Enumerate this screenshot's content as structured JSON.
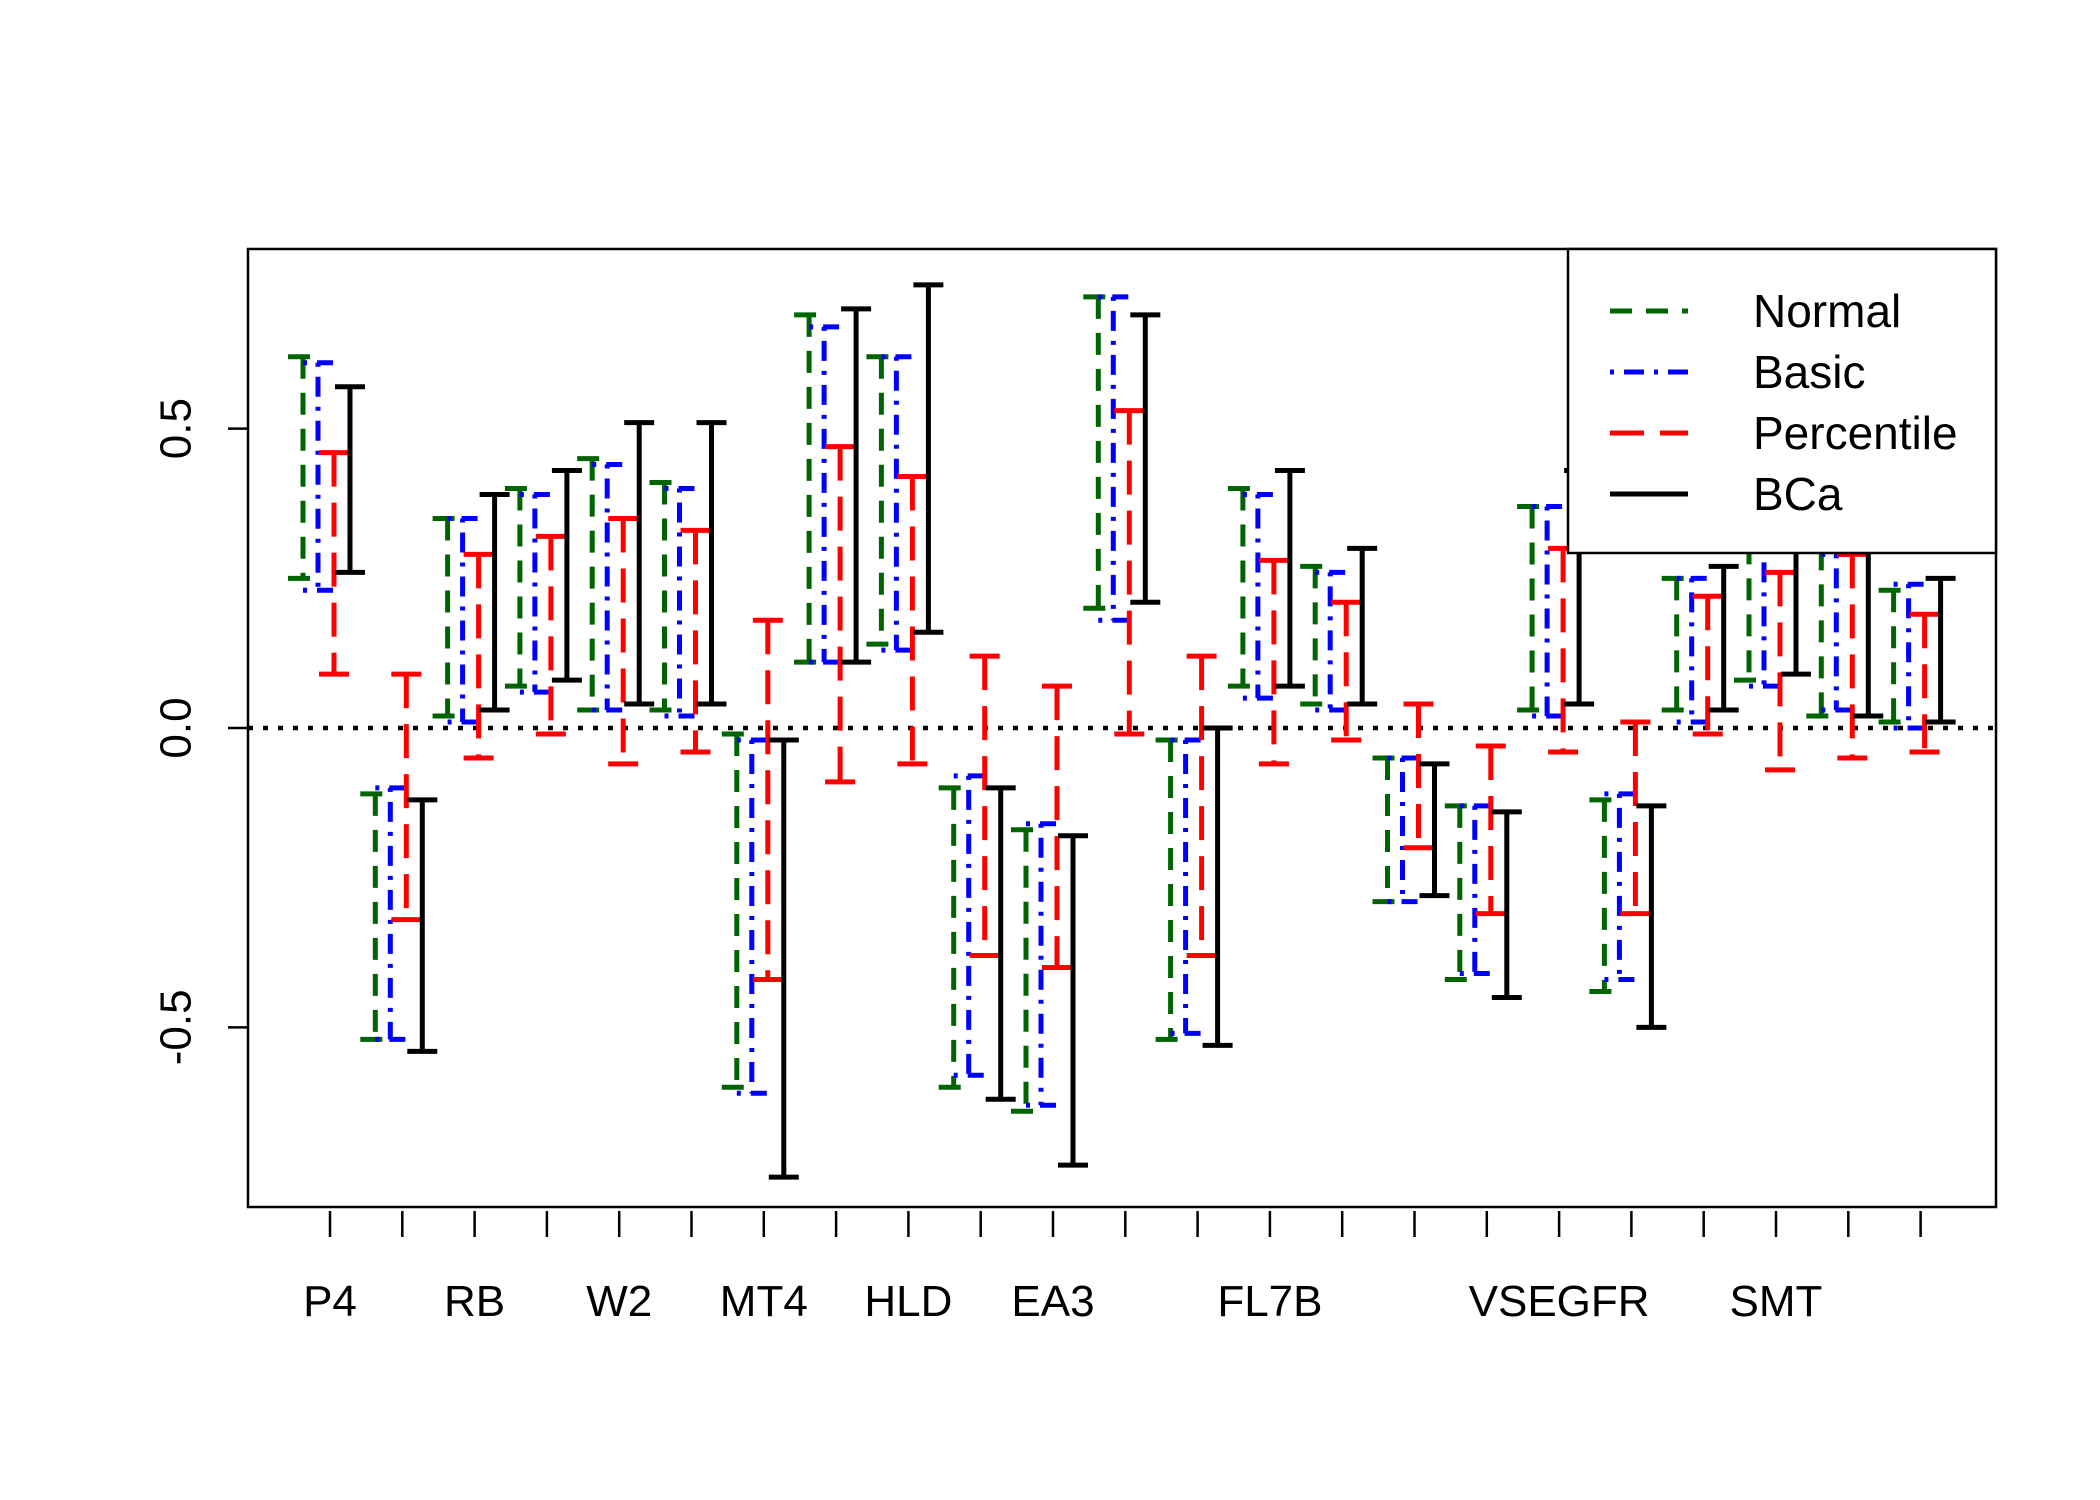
{
  "chart_data": {
    "type": "interval",
    "title": "",
    "xlabel": "",
    "ylabel": "",
    "ylim": [
      -0.8,
      0.8
    ],
    "y_ticks": [
      -0.5,
      0.0,
      0.5
    ],
    "y_tick_labels": [
      "-0.5",
      "0.0",
      "0.5"
    ],
    "x_tick_labels": [
      "P4",
      "RB",
      "W2",
      "MT4",
      "HLD",
      "EA3",
      "FL7B",
      "VSEGFR",
      "SMT"
    ],
    "x_tick_label_positions": [
      1,
      3,
      5,
      7,
      9,
      11,
      14,
      18,
      21
    ],
    "n_positions": 23,
    "reference_line": 0.0,
    "legend": {
      "placement": "top-right"
    },
    "series": [
      {
        "name": "Normal",
        "color": "#006400",
        "dash": "dashed",
        "intervals": [
          {
            "x": 1,
            "lower": 0.25,
            "upper": 0.62
          },
          {
            "x": 2,
            "lower": -0.52,
            "upper": -0.11
          },
          {
            "x": 3,
            "lower": 0.02,
            "upper": 0.35
          },
          {
            "x": 4,
            "lower": 0.07,
            "upper": 0.4
          },
          {
            "x": 5,
            "lower": 0.03,
            "upper": 0.45
          },
          {
            "x": 6,
            "lower": 0.03,
            "upper": 0.41
          },
          {
            "x": 7,
            "lower": -0.6,
            "upper": -0.01
          },
          {
            "x": 8,
            "lower": 0.11,
            "upper": 0.69
          },
          {
            "x": 9,
            "lower": 0.14,
            "upper": 0.62
          },
          {
            "x": 10,
            "lower": -0.6,
            "upper": -0.1
          },
          {
            "x": 11,
            "lower": -0.64,
            "upper": -0.17
          },
          {
            "x": 12,
            "lower": 0.2,
            "upper": 0.72
          },
          {
            "x": 13,
            "lower": -0.52,
            "upper": -0.02
          },
          {
            "x": 14,
            "lower": 0.07,
            "upper": 0.4
          },
          {
            "x": 15,
            "lower": 0.04,
            "upper": 0.27
          },
          {
            "x": 16,
            "lower": -0.29,
            "upper": -0.05
          },
          {
            "x": 17,
            "lower": -0.42,
            "upper": -0.13
          },
          {
            "x": 18,
            "lower": 0.03,
            "upper": 0.37
          },
          {
            "x": 19,
            "lower": -0.44,
            "upper": -0.12
          },
          {
            "x": 20,
            "lower": 0.03,
            "upper": 0.25
          },
          {
            "x": 21,
            "lower": 0.08,
            "upper": 0.31
          },
          {
            "x": 22,
            "lower": 0.02,
            "upper": 0.3
          },
          {
            "x": 23,
            "lower": 0.01,
            "upper": 0.23
          }
        ]
      },
      {
        "name": "Basic",
        "color": "#0000ff",
        "dash": "dotdash",
        "intervals": [
          {
            "x": 1,
            "lower": 0.23,
            "upper": 0.61
          },
          {
            "x": 2,
            "lower": -0.52,
            "upper": -0.1
          },
          {
            "x": 3,
            "lower": 0.01,
            "upper": 0.35
          },
          {
            "x": 4,
            "lower": 0.06,
            "upper": 0.39
          },
          {
            "x": 5,
            "lower": 0.03,
            "upper": 0.44
          },
          {
            "x": 6,
            "lower": 0.02,
            "upper": 0.4
          },
          {
            "x": 7,
            "lower": -0.61,
            "upper": -0.02
          },
          {
            "x": 8,
            "lower": 0.11,
            "upper": 0.67
          },
          {
            "x": 9,
            "lower": 0.13,
            "upper": 0.62
          },
          {
            "x": 10,
            "lower": -0.58,
            "upper": -0.08
          },
          {
            "x": 11,
            "lower": -0.63,
            "upper": -0.16
          },
          {
            "x": 12,
            "lower": 0.18,
            "upper": 0.72
          },
          {
            "x": 13,
            "lower": -0.51,
            "upper": -0.02
          },
          {
            "x": 14,
            "lower": 0.05,
            "upper": 0.39
          },
          {
            "x": 15,
            "lower": 0.03,
            "upper": 0.26
          },
          {
            "x": 16,
            "lower": -0.29,
            "upper": -0.05
          },
          {
            "x": 17,
            "lower": -0.41,
            "upper": -0.13
          },
          {
            "x": 18,
            "lower": 0.02,
            "upper": 0.37
          },
          {
            "x": 19,
            "lower": -0.42,
            "upper": -0.11
          },
          {
            "x": 20,
            "lower": 0.01,
            "upper": 0.25
          },
          {
            "x": 21,
            "lower": 0.07,
            "upper": 0.3
          },
          {
            "x": 22,
            "lower": 0.03,
            "upper": 0.29
          },
          {
            "x": 23,
            "lower": 0.0,
            "upper": 0.24
          }
        ]
      },
      {
        "name": "Percentile",
        "color": "#ff0000",
        "dash": "longdash",
        "intervals": [
          {
            "x": 1,
            "lower": 0.09,
            "upper": 0.46
          },
          {
            "x": 2,
            "lower": -0.32,
            "upper": 0.09
          },
          {
            "x": 3,
            "lower": -0.05,
            "upper": 0.29
          },
          {
            "x": 4,
            "lower": -0.01,
            "upper": 0.32
          },
          {
            "x": 5,
            "lower": -0.06,
            "upper": 0.35
          },
          {
            "x": 6,
            "lower": -0.04,
            "upper": 0.33
          },
          {
            "x": 7,
            "lower": -0.42,
            "upper": 0.18
          },
          {
            "x": 8,
            "lower": -0.09,
            "upper": 0.47
          },
          {
            "x": 9,
            "lower": -0.06,
            "upper": 0.42
          },
          {
            "x": 10,
            "lower": -0.38,
            "upper": 0.12
          },
          {
            "x": 11,
            "lower": -0.4,
            "upper": 0.07
          },
          {
            "x": 12,
            "lower": -0.01,
            "upper": 0.53
          },
          {
            "x": 13,
            "lower": -0.38,
            "upper": 0.12
          },
          {
            "x": 14,
            "lower": -0.06,
            "upper": 0.28
          },
          {
            "x": 15,
            "lower": -0.02,
            "upper": 0.21
          },
          {
            "x": 16,
            "lower": -0.2,
            "upper": 0.04
          },
          {
            "x": 17,
            "lower": -0.31,
            "upper": -0.03
          },
          {
            "x": 18,
            "lower": -0.04,
            "upper": 0.3
          },
          {
            "x": 19,
            "lower": -0.31,
            "upper": 0.01
          },
          {
            "x": 20,
            "lower": -0.01,
            "upper": 0.22
          },
          {
            "x": 21,
            "lower": -0.07,
            "upper": 0.26
          },
          {
            "x": 22,
            "lower": -0.05,
            "upper": 0.29
          },
          {
            "x": 23,
            "lower": -0.04,
            "upper": 0.19
          }
        ]
      },
      {
        "name": "BCa",
        "color": "#000000",
        "dash": "solid",
        "intervals": [
          {
            "x": 1,
            "lower": 0.26,
            "upper": 0.57
          },
          {
            "x": 2,
            "lower": -0.54,
            "upper": -0.12
          },
          {
            "x": 3,
            "lower": 0.03,
            "upper": 0.39
          },
          {
            "x": 4,
            "lower": 0.08,
            "upper": 0.43
          },
          {
            "x": 5,
            "lower": 0.04,
            "upper": 0.51
          },
          {
            "x": 6,
            "lower": 0.04,
            "upper": 0.51
          },
          {
            "x": 7,
            "lower": -0.75,
            "upper": -0.02
          },
          {
            "x": 8,
            "lower": 0.11,
            "upper": 0.7
          },
          {
            "x": 9,
            "lower": 0.16,
            "upper": 0.74
          },
          {
            "x": 10,
            "lower": -0.62,
            "upper": -0.1
          },
          {
            "x": 11,
            "lower": -0.73,
            "upper": -0.18
          },
          {
            "x": 12,
            "lower": 0.21,
            "upper": 0.69
          },
          {
            "x": 13,
            "lower": -0.53,
            "upper": 0.0
          },
          {
            "x": 14,
            "lower": 0.07,
            "upper": 0.43
          },
          {
            "x": 15,
            "lower": 0.04,
            "upper": 0.3
          },
          {
            "x": 16,
            "lower": -0.28,
            "upper": -0.06
          },
          {
            "x": 17,
            "lower": -0.45,
            "upper": -0.14
          },
          {
            "x": 18,
            "lower": 0.04,
            "upper": 0.43
          },
          {
            "x": 19,
            "lower": -0.5,
            "upper": -0.13
          },
          {
            "x": 20,
            "lower": 0.03,
            "upper": 0.27
          },
          {
            "x": 21,
            "lower": 0.09,
            "upper": 0.33
          },
          {
            "x": 22,
            "lower": 0.02,
            "upper": 0.31
          },
          {
            "x": 23,
            "lower": 0.01,
            "upper": 0.25
          }
        ]
      }
    ]
  }
}
